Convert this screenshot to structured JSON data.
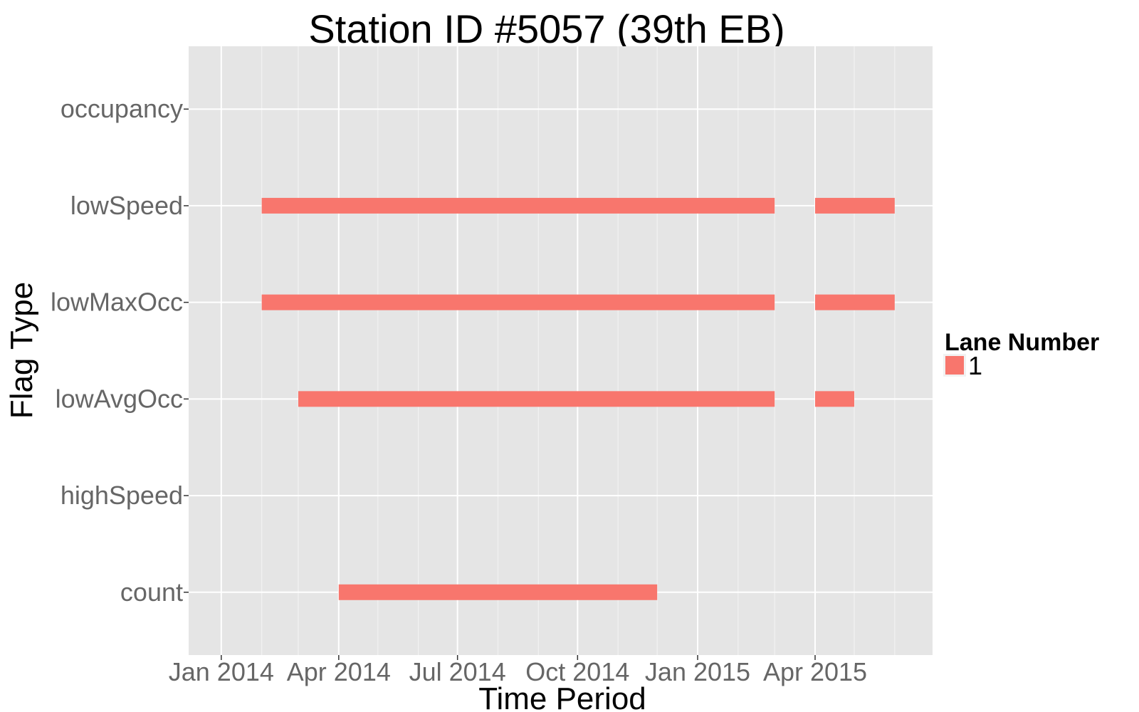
{
  "chart_data": {
    "type": "bar",
    "orientation": "horizontal-timeline",
    "title": "Station ID #5057 (39th EB)",
    "xlabel": "Time Period",
    "ylabel": "Flag Type",
    "categories": [
      "count",
      "highSpeed",
      "lowAvgOcc",
      "lowMaxOcc",
      "lowSpeed",
      "occupancy"
    ],
    "x_ticks": [
      {
        "date": "2014-01-01",
        "label": "Jan 2014"
      },
      {
        "date": "2014-04-01",
        "label": "Apr 2014"
      },
      {
        "date": "2014-07-01",
        "label": "Jul 2014"
      },
      {
        "date": "2014-10-01",
        "label": "Oct 2014"
      },
      {
        "date": "2015-01-01",
        "label": "Jan 2015"
      },
      {
        "date": "2015-04-01",
        "label": "Apr 2015"
      }
    ],
    "xlim": [
      "2013-12-07",
      "2015-06-30"
    ],
    "series": [
      {
        "name": "1",
        "color": "#F8766D",
        "segments": [
          {
            "category": "lowSpeed",
            "start": "2014-02-01",
            "end": "2015-03-01"
          },
          {
            "category": "lowSpeed",
            "start": "2015-04-01",
            "end": "2015-06-01"
          },
          {
            "category": "lowMaxOcc",
            "start": "2014-02-01",
            "end": "2015-03-01"
          },
          {
            "category": "lowMaxOcc",
            "start": "2015-04-01",
            "end": "2015-06-01"
          },
          {
            "category": "lowAvgOcc",
            "start": "2014-03-01",
            "end": "2015-03-01"
          },
          {
            "category": "lowAvgOcc",
            "start": "2015-04-01",
            "end": "2015-05-01"
          },
          {
            "category": "count",
            "start": "2014-04-01",
            "end": "2014-12-01"
          }
        ]
      }
    ],
    "legend": {
      "title": "Lane Number",
      "position": "right"
    },
    "grid": true
  }
}
